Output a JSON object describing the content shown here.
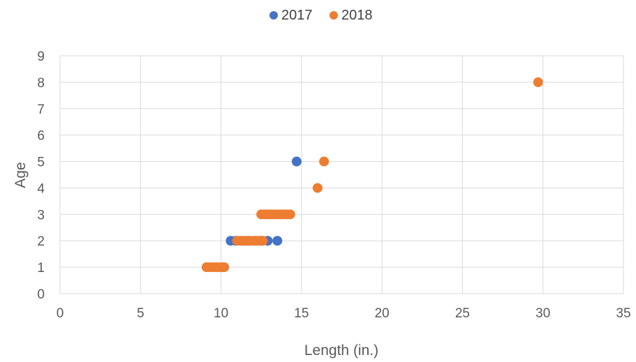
{
  "chart_data": {
    "type": "scatter",
    "xlabel": "Length (in.)",
    "ylabel": "Age",
    "xlim": [
      0,
      35
    ],
    "ylim": [
      0,
      9
    ],
    "x_ticks": [
      "0",
      "5",
      "10",
      "15",
      "20",
      "25",
      "30",
      "35"
    ],
    "y_ticks": [
      "0",
      "1",
      "2",
      "3",
      "4",
      "5",
      "6",
      "7",
      "8",
      "9"
    ],
    "grid": true,
    "legend_position": "top",
    "series": [
      {
        "name": "2017",
        "color": "#4472C4",
        "points": [
          {
            "x": 10.6,
            "y": 2
          },
          {
            "x": 10.9,
            "y": 2
          },
          {
            "x": 11.3,
            "y": 2
          },
          {
            "x": 11.7,
            "y": 2
          },
          {
            "x": 12.1,
            "y": 2
          },
          {
            "x": 12.5,
            "y": 2
          },
          {
            "x": 12.9,
            "y": 2
          },
          {
            "x": 13.5,
            "y": 2
          },
          {
            "x": 14.7,
            "y": 5
          }
        ]
      },
      {
        "name": "2018",
        "color": "#ED7D31",
        "points": [
          {
            "x": 9.1,
            "y": 1
          },
          {
            "x": 9.3,
            "y": 1
          },
          {
            "x": 9.5,
            "y": 1
          },
          {
            "x": 9.7,
            "y": 1
          },
          {
            "x": 9.9,
            "y": 1
          },
          {
            "x": 10.1,
            "y": 1
          },
          {
            "x": 10.2,
            "y": 1
          },
          {
            "x": 11.0,
            "y": 2
          },
          {
            "x": 11.2,
            "y": 2
          },
          {
            "x": 11.4,
            "y": 2
          },
          {
            "x": 11.6,
            "y": 2
          },
          {
            "x": 11.8,
            "y": 2
          },
          {
            "x": 12.0,
            "y": 2
          },
          {
            "x": 12.2,
            "y": 2
          },
          {
            "x": 12.4,
            "y": 2
          },
          {
            "x": 12.6,
            "y": 2
          },
          {
            "x": 12.5,
            "y": 3
          },
          {
            "x": 12.7,
            "y": 3
          },
          {
            "x": 12.9,
            "y": 3
          },
          {
            "x": 13.1,
            "y": 3
          },
          {
            "x": 13.3,
            "y": 3
          },
          {
            "x": 13.5,
            "y": 3
          },
          {
            "x": 13.7,
            "y": 3
          },
          {
            "x": 13.9,
            "y": 3
          },
          {
            "x": 14.1,
            "y": 3
          },
          {
            "x": 14.3,
            "y": 3
          },
          {
            "x": 16.0,
            "y": 4
          },
          {
            "x": 16.4,
            "y": 5
          },
          {
            "x": 29.7,
            "y": 8
          }
        ]
      }
    ]
  }
}
